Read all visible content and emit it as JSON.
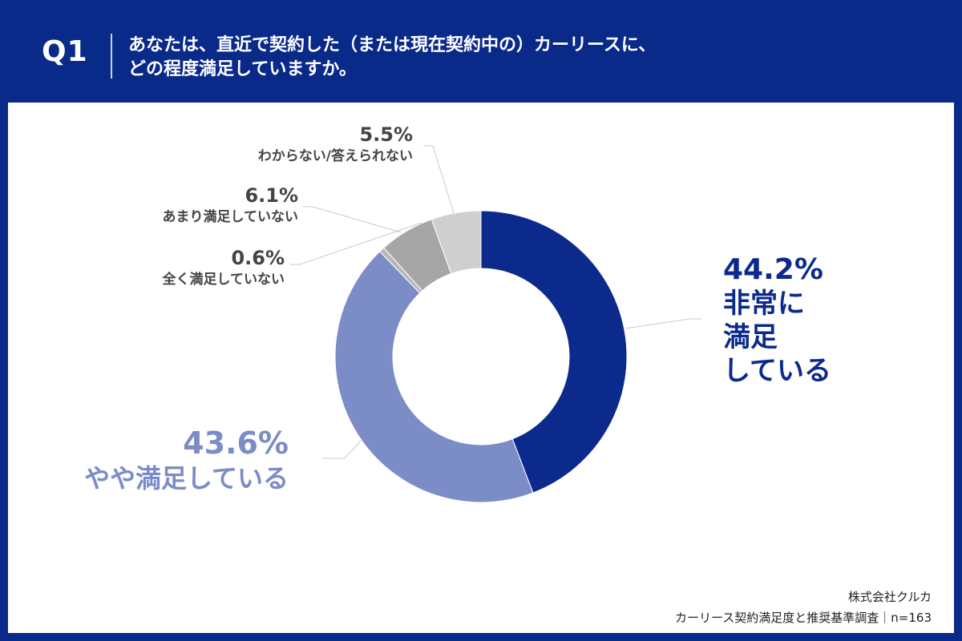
{
  "header": {
    "question_number": "Q1",
    "question_line1": "あなたは、直近で契約した（または現在契約中の）カーリースに、",
    "question_line2": "どの程度満足していますか。"
  },
  "chart_data": {
    "type": "pie",
    "donut": true,
    "title": "",
    "slices": [
      {
        "label_lines": [
          "非常に",
          "満足",
          "している"
        ],
        "value": 44.2,
        "value_label": "44.2%",
        "color": "#0b2a8c"
      },
      {
        "label_lines": [
          "やや満足している"
        ],
        "value": 43.6,
        "value_label": "43.6%",
        "color": "#7b8cc7"
      },
      {
        "label_lines": [
          "全く満足していない"
        ],
        "value": 0.6,
        "value_label": "0.6%",
        "color": "#b8b8b8"
      },
      {
        "label_lines": [
          "あまり満足していない"
        ],
        "value": 6.1,
        "value_label": "6.1%",
        "color": "#a6a6a6"
      },
      {
        "label_lines": [
          "わからない/答えられない"
        ],
        "value": 5.5,
        "value_label": "5.5%",
        "color": "#cfcfcf"
      }
    ]
  },
  "footer": {
    "company": "株式会社クルカ",
    "survey": "カーリース契約満足度と推奨基準調査｜n=163"
  }
}
